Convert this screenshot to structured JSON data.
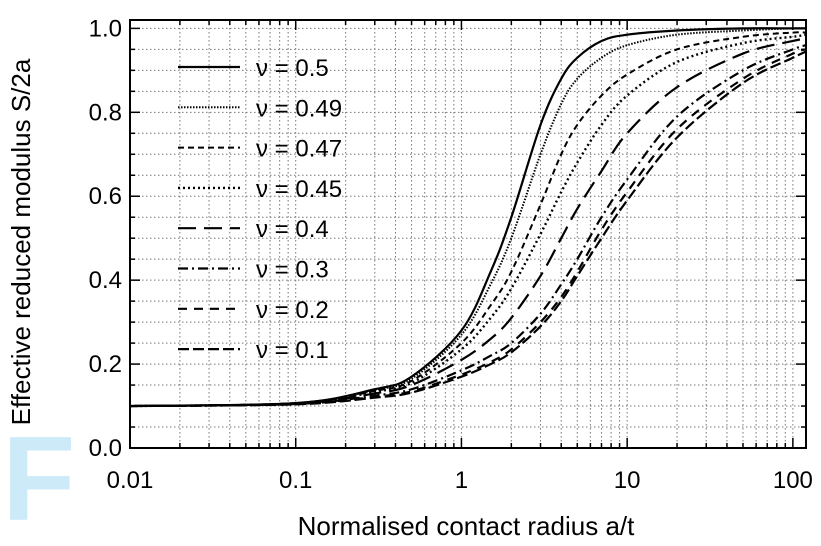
{
  "chart_data": {
    "type": "line",
    "xlabel": "Normalised contact radius a/t",
    "ylabel": "Effective reduced modulus S/2a",
    "xscale": "log",
    "xlim": [
      0.01,
      120
    ],
    "ylim": [
      0,
      1.02
    ],
    "xticks": [
      {
        "value": 0.01,
        "label": "0.01"
      },
      {
        "value": 0.1,
        "label": "0.1"
      },
      {
        "value": 1,
        "label": "1"
      },
      {
        "value": 10,
        "label": "10"
      },
      {
        "value": 100,
        "label": "100"
      }
    ],
    "yticks": [
      {
        "value": 0.0,
        "label": "0.0"
      },
      {
        "value": 0.2,
        "label": "0.2"
      },
      {
        "value": 0.4,
        "label": "0.4"
      },
      {
        "value": 0.6,
        "label": "0.6"
      },
      {
        "value": 0.8,
        "label": "0.8"
      },
      {
        "value": 1.0,
        "label": "1.0"
      }
    ],
    "grid": true,
    "legend_position": "top-left",
    "series": [
      {
        "name": "ν = 0.5",
        "dash": "solid",
        "x": [
          0.01,
          0.1,
          0.3,
          0.5,
          1,
          1.5,
          2,
          3,
          4,
          5,
          7,
          10,
          20,
          50,
          100,
          120
        ],
        "y": [
          0.1,
          0.107,
          0.14,
          0.17,
          0.28,
          0.42,
          0.55,
          0.77,
          0.88,
          0.93,
          0.97,
          0.985,
          0.995,
          1.0,
          1.0,
          1.0
        ]
      },
      {
        "name": "ν = 0.49",
        "dash": "dotted-fine",
        "x": [
          0.01,
          0.1,
          0.3,
          0.5,
          1,
          1.5,
          2,
          3,
          4,
          5,
          7,
          10,
          20,
          50,
          100,
          120
        ],
        "y": [
          0.1,
          0.107,
          0.138,
          0.165,
          0.27,
          0.39,
          0.5,
          0.7,
          0.82,
          0.88,
          0.93,
          0.96,
          0.985,
          0.995,
          1.0,
          1.0
        ]
      },
      {
        "name": "ν = 0.47",
        "dash": "short-dash",
        "x": [
          0.01,
          0.1,
          0.3,
          0.5,
          1,
          1.5,
          2,
          3,
          4,
          5,
          7,
          10,
          20,
          50,
          100,
          120
        ],
        "y": [
          0.1,
          0.107,
          0.136,
          0.16,
          0.25,
          0.34,
          0.42,
          0.58,
          0.7,
          0.77,
          0.84,
          0.89,
          0.95,
          0.98,
          0.99,
          0.99
        ]
      },
      {
        "name": "ν = 0.45",
        "dash": "dotted",
        "x": [
          0.01,
          0.1,
          0.3,
          0.5,
          1,
          1.5,
          2,
          3,
          4,
          5,
          7,
          10,
          20,
          50,
          100,
          120
        ],
        "y": [
          0.1,
          0.106,
          0.134,
          0.155,
          0.235,
          0.31,
          0.38,
          0.51,
          0.61,
          0.68,
          0.77,
          0.84,
          0.92,
          0.965,
          0.98,
          0.985
        ]
      },
      {
        "name": "ν = 0.4",
        "dash": "long-dash",
        "x": [
          0.01,
          0.1,
          0.3,
          0.5,
          1,
          1.5,
          2,
          3,
          4,
          5,
          7,
          10,
          20,
          50,
          100,
          120
        ],
        "y": [
          0.1,
          0.106,
          0.13,
          0.15,
          0.21,
          0.26,
          0.31,
          0.41,
          0.5,
          0.57,
          0.66,
          0.75,
          0.86,
          0.94,
          0.97,
          0.975
        ]
      },
      {
        "name": "ν = 0.3",
        "dash": "dash-dot",
        "x": [
          0.01,
          0.1,
          0.3,
          0.5,
          1,
          1.5,
          2,
          3,
          4,
          5,
          7,
          10,
          20,
          50,
          100,
          120
        ],
        "y": [
          0.1,
          0.105,
          0.125,
          0.14,
          0.185,
          0.22,
          0.25,
          0.32,
          0.39,
          0.45,
          0.55,
          0.64,
          0.79,
          0.9,
          0.95,
          0.96
        ]
      },
      {
        "name": "ν = 0.2",
        "dash": "dash-space",
        "x": [
          0.01,
          0.1,
          0.3,
          0.5,
          1,
          1.5,
          2,
          3,
          4,
          5,
          7,
          10,
          20,
          50,
          100,
          120
        ],
        "y": [
          0.1,
          0.105,
          0.122,
          0.135,
          0.175,
          0.205,
          0.235,
          0.3,
          0.36,
          0.42,
          0.52,
          0.61,
          0.76,
          0.88,
          0.94,
          0.95
        ]
      },
      {
        "name": "ν = 0.1",
        "dash": "medium-dash",
        "x": [
          0.01,
          0.1,
          0.3,
          0.5,
          1,
          1.5,
          2,
          3,
          4,
          5,
          7,
          10,
          20,
          50,
          100,
          120
        ],
        "y": [
          0.1,
          0.104,
          0.12,
          0.132,
          0.17,
          0.2,
          0.228,
          0.29,
          0.35,
          0.41,
          0.5,
          0.59,
          0.74,
          0.87,
          0.93,
          0.945
        ]
      }
    ]
  },
  "watermark_text": "F"
}
